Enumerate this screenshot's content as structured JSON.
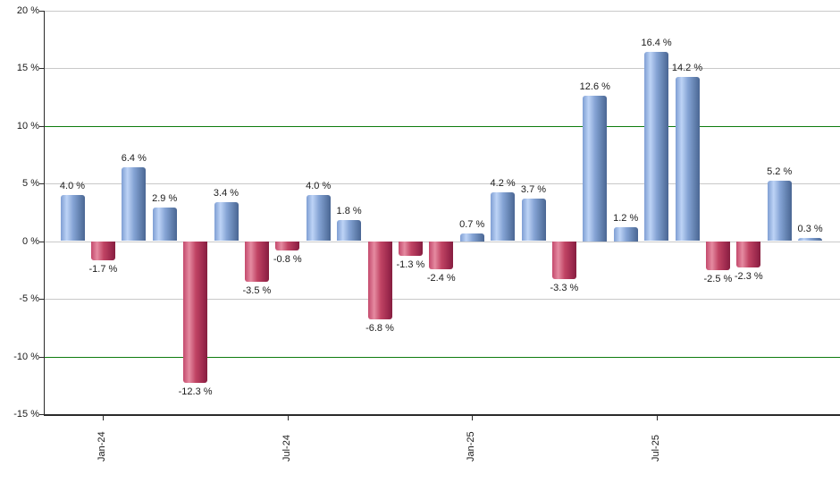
{
  "chart_data": {
    "type": "bar",
    "title": "",
    "unit": "%",
    "values": [
      4.0,
      -1.7,
      6.4,
      2.9,
      -12.3,
      3.4,
      -3.5,
      -0.8,
      4.0,
      1.8,
      -6.8,
      -1.3,
      -2.4,
      0.7,
      4.2,
      3.7,
      -3.3,
      12.6,
      1.2,
      16.4,
      14.2,
      -2.5,
      -2.3,
      5.2,
      0.3
    ],
    "bar_labels": [
      "4.0 %",
      "-1.7 %",
      "6.4 %",
      "2.9 %",
      "-12.3 %",
      "3.4 %",
      "-3.5 %",
      "-0.8 %",
      "4.0 %",
      "1.8 %",
      "-6.8 %",
      "-1.3 %",
      "-2.4 %",
      "0.7 %",
      "4.2 %",
      "3.7 %",
      "-3.3 %",
      "12.6 %",
      "1.2 %",
      "16.4 %",
      "14.2 %",
      "-2.5 %",
      "-2.3 %",
      "5.2 %",
      "0.3 %"
    ],
    "x_ticks": [
      {
        "label": "Jan-24",
        "bar_index": 1
      },
      {
        "label": "Jul-24",
        "bar_index": 7
      },
      {
        "label": "Jan-25",
        "bar_index": 13
      },
      {
        "label": "Jul-25",
        "bar_index": 19
      }
    ],
    "y_axis": {
      "min": -15,
      "max": 20,
      "tick_step": 5,
      "tick_values": [
        20,
        15,
        10,
        5,
        0,
        -5,
        -10,
        -15
      ],
      "tick_labels": [
        "20 %",
        "15 %",
        "10 %",
        "5 %",
        "0 %",
        "-5 %",
        "-10 %",
        "-15 %"
      ]
    },
    "reference_lines": [
      {
        "value": 10
      },
      {
        "value": -10
      }
    ],
    "grid": "horizontal",
    "legend": "none",
    "colors": {
      "positive_bar_edge": "#7f9fd3",
      "positive_bar_light": "#bdd3f6",
      "positive_bar_mid": "#84a3d4",
      "positive_bar_dark": "#4a6693",
      "negative_bar_edge": "#c4496c",
      "negative_bar_light": "#e58ba1",
      "negative_bar_mid": "#c04464",
      "negative_bar_dark": "#851e3f",
      "gridline": "#c9c9c9",
      "reference_line": "#0e7c0e",
      "axis": "#2a2a2a",
      "label_text": "#1b1b1b",
      "background": "#ffffff"
    }
  }
}
